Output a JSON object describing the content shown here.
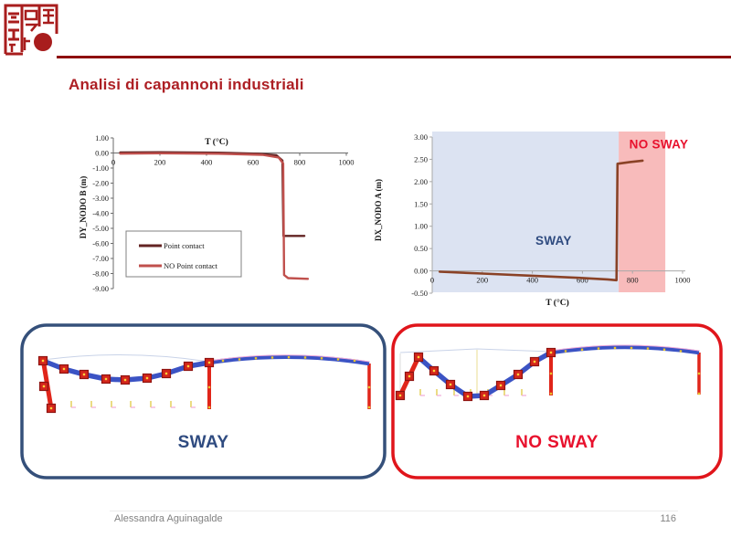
{
  "slide": {
    "title": "Analisi di capannoni industriali",
    "logo": "chinese-seal-stamp",
    "colors": {
      "title_red": "#AD1F24",
      "header_line_red": "#8E0E0E",
      "sway_blue": "#2F4B80",
      "no_sway_red": "#E8112D",
      "box_blue_border": "#35507A",
      "box_red_border": "#E0151B",
      "beam_blue": "#3B53C4",
      "column_red": "#D3261C"
    },
    "footer": {
      "author": "Alessandra Aguinagalde",
      "page": "116"
    }
  },
  "chart_data": [
    {
      "type": "line",
      "title": "T (°C)",
      "ylabel": "DY_NODO B (m)",
      "xlabel": "",
      "xlim": [
        0,
        1000
      ],
      "ylim": [
        -9,
        1
      ],
      "xticks": [
        0,
        200,
        400,
        600,
        800,
        1000
      ],
      "yticks": [
        1,
        0,
        -1,
        -2,
        -3,
        -4,
        -5,
        -6,
        -7,
        -8,
        -9
      ],
      "grid": false,
      "legend_position": "inside lower-left box",
      "series": [
        {
          "name": "Point contact",
          "color": "#632423",
          "points": [
            [
              30,
              0.03
            ],
            [
              200,
              0.05
            ],
            [
              450,
              0.02
            ],
            [
              620,
              -0.05
            ],
            [
              700,
              -0.15
            ],
            [
              726,
              -0.5
            ],
            [
              730,
              -5.5
            ],
            [
              820,
              -5.5
            ]
          ]
        },
        {
          "name": "NO Point contact",
          "color": "#C0504D",
          "points": [
            [
              30,
              -0.04
            ],
            [
              200,
              -0.02
            ],
            [
              450,
              -0.05
            ],
            [
              640,
              -0.12
            ],
            [
              710,
              -0.3
            ],
            [
              729,
              -0.7
            ],
            [
              733,
              -8.1
            ],
            [
              750,
              -8.3
            ],
            [
              835,
              -8.35
            ]
          ]
        }
      ]
    },
    {
      "type": "line",
      "title": "",
      "ylabel": "DX_NODO A (m)",
      "xlabel": "T (°C)",
      "xlim": [
        0,
        1000
      ],
      "ylim": [
        -0.5,
        3
      ],
      "xticks": [
        0,
        200,
        400,
        600,
        800,
        1000
      ],
      "yticks": [
        3,
        2.5,
        2,
        1.5,
        1,
        0.5,
        0,
        -0.5
      ],
      "grid": false,
      "regions": [
        {
          "label": "SWAY",
          "x0": 0,
          "x1": 745,
          "fill": "#DCE3F2",
          "label_color": "#2F4B80",
          "label_at": [
            485,
            0.58
          ]
        },
        {
          "label": "NO SWAY",
          "x0": 745,
          "x1": 931,
          "fill": "#F8BBBB",
          "label_color": "#E8112D",
          "label_at": [
            905,
            2.74
          ]
        }
      ],
      "series": [
        {
          "name": "DX_NODO A",
          "color": "#8A4226",
          "points": [
            [
              30,
              -0.02
            ],
            [
              200,
              -0.06
            ],
            [
              400,
              -0.11
            ],
            [
              600,
              -0.16
            ],
            [
              700,
              -0.19
            ],
            [
              736,
              -0.21
            ],
            [
              740,
              2.4
            ],
            [
              790,
              2.44
            ],
            [
              840,
              2.47
            ]
          ]
        }
      ]
    }
  ],
  "panels": {
    "sway": {
      "label": "SWAY"
    },
    "no_sway": {
      "label": "NO SWAY"
    }
  }
}
